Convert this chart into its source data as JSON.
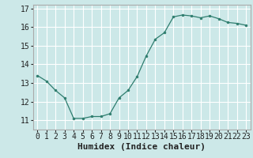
{
  "x": [
    0,
    1,
    2,
    3,
    4,
    5,
    6,
    7,
    8,
    9,
    10,
    11,
    12,
    13,
    14,
    15,
    16,
    17,
    18,
    19,
    20,
    21,
    22,
    23
  ],
  "y": [
    13.4,
    13.1,
    12.6,
    12.2,
    11.1,
    11.1,
    11.2,
    11.2,
    11.35,
    12.2,
    12.6,
    13.35,
    14.45,
    15.35,
    15.7,
    16.55,
    16.65,
    16.6,
    16.5,
    16.6,
    16.45,
    16.25,
    16.2,
    16.1
  ],
  "xlabel": "Humidex (Indice chaleur)",
  "xlim": [
    -0.5,
    23.5
  ],
  "ylim": [
    10.5,
    17.2
  ],
  "yticks": [
    11,
    12,
    13,
    14,
    15,
    16,
    17
  ],
  "xticks": [
    0,
    1,
    2,
    3,
    4,
    5,
    6,
    7,
    8,
    9,
    10,
    11,
    12,
    13,
    14,
    15,
    16,
    17,
    18,
    19,
    20,
    21,
    22,
    23
  ],
  "line_color": "#2e7d6e",
  "marker_color": "#2e7d6e",
  "bg_color": "#cce8e8",
  "grid_color": "#ffffff",
  "border_color": "#aaaaaa",
  "tick_label_fontsize": 7,
  "xlabel_fontsize": 8,
  "marker_size": 2.0,
  "line_width": 0.9
}
